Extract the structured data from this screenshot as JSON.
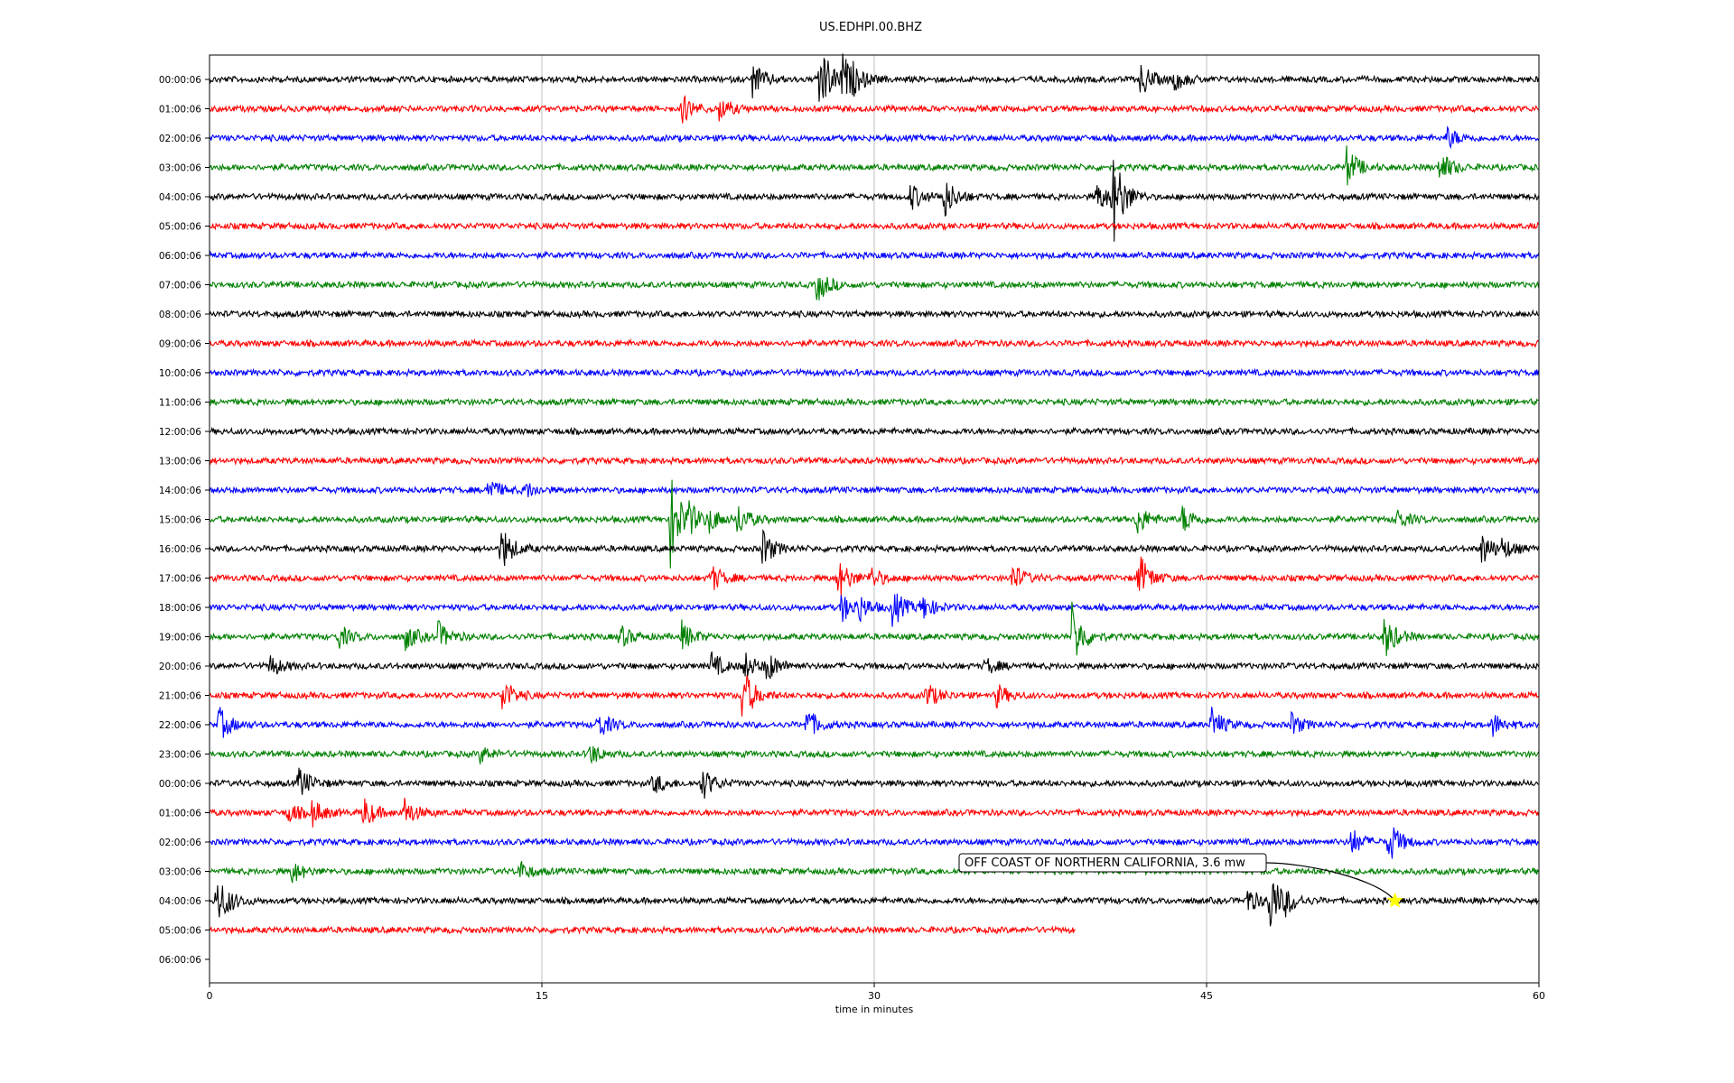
{
  "chart_data": {
    "type": "line",
    "title": "US.EDHPI.00.BHZ",
    "xlabel": "time in minutes",
    "ylabel": "",
    "xlim": [
      0,
      60
    ],
    "x_ticks": [
      0,
      15,
      30,
      45,
      60
    ],
    "grid": "vertical",
    "row_labels": [
      "00:00:06",
      "01:00:06",
      "02:00:06",
      "03:00:06",
      "04:00:06",
      "05:00:06",
      "06:00:06",
      "07:00:06",
      "08:00:06",
      "09:00:06",
      "10:00:06",
      "11:00:06",
      "12:00:06",
      "13:00:06",
      "14:00:06",
      "15:00:06",
      "16:00:06",
      "17:00:06",
      "18:00:06",
      "19:00:06",
      "20:00:06",
      "21:00:06",
      "22:00:06",
      "23:00:06",
      "00:00:06",
      "01:00:06",
      "02:00:06",
      "03:00:06",
      "04:00:06",
      "05:00:06",
      "06:00:06"
    ],
    "trace_colors": [
      "#000000",
      "#ff0000",
      "#0000ff",
      "#008000"
    ],
    "traces": [
      {
        "row": 0,
        "end_minute": 60,
        "events": [
          {
            "t": 24.5,
            "amp": 0.6
          },
          {
            "t": 27.5,
            "amp": 1.4
          },
          {
            "t": 28.5,
            "amp": 1.0
          },
          {
            "t": 29.0,
            "amp": 0.6
          },
          {
            "t": 42.0,
            "amp": 0.6
          },
          {
            "t": 43.5,
            "amp": 0.4
          }
        ]
      },
      {
        "row": 1,
        "end_minute": 60,
        "events": [
          {
            "t": 21.3,
            "amp": 0.5
          },
          {
            "t": 23.0,
            "amp": 0.4
          }
        ]
      },
      {
        "row": 2,
        "end_minute": 60,
        "events": [
          {
            "t": 55.8,
            "amp": 0.4
          }
        ]
      },
      {
        "row": 3,
        "end_minute": 60,
        "events": [
          {
            "t": 51.3,
            "amp": 0.7
          },
          {
            "t": 55.5,
            "amp": 0.6
          }
        ]
      },
      {
        "row": 4,
        "end_minute": 60,
        "events": [
          {
            "t": 31.6,
            "amp": 0.5
          },
          {
            "t": 33.1,
            "amp": 0.8
          },
          {
            "t": 40.0,
            "amp": 0.6
          },
          {
            "t": 40.7,
            "amp": 1.9
          }
        ]
      },
      {
        "row": 5,
        "end_minute": 60,
        "events": []
      },
      {
        "row": 6,
        "end_minute": 60,
        "events": []
      },
      {
        "row": 7,
        "end_minute": 60,
        "events": [
          {
            "t": 27.4,
            "amp": 0.6
          }
        ]
      },
      {
        "row": 8,
        "end_minute": 60,
        "events": []
      },
      {
        "row": 9,
        "end_minute": 60,
        "events": []
      },
      {
        "row": 10,
        "end_minute": 60,
        "events": []
      },
      {
        "row": 11,
        "end_minute": 60,
        "events": []
      },
      {
        "row": 12,
        "end_minute": 60,
        "events": []
      },
      {
        "row": 13,
        "end_minute": 60,
        "events": []
      },
      {
        "row": 14,
        "end_minute": 60,
        "events": [
          {
            "t": 12.5,
            "amp": 0.5
          },
          {
            "t": 14.2,
            "amp": 0.3
          }
        ]
      },
      {
        "row": 15,
        "end_minute": 60,
        "events": [
          {
            "t": 20.8,
            "amp": 1.6
          },
          {
            "t": 21.5,
            "amp": 0.8
          },
          {
            "t": 22.5,
            "amp": 0.5
          },
          {
            "t": 23.8,
            "amp": 0.6
          },
          {
            "t": 41.8,
            "amp": 0.6
          },
          {
            "t": 43.9,
            "amp": 0.5
          },
          {
            "t": 53.5,
            "amp": 0.4
          }
        ]
      },
      {
        "row": 16,
        "end_minute": 60,
        "events": [
          {
            "t": 13.1,
            "amp": 0.9
          },
          {
            "t": 24.9,
            "amp": 0.7
          },
          {
            "t": 57.4,
            "amp": 0.6
          },
          {
            "t": 58.3,
            "amp": 0.4
          }
        ]
      },
      {
        "row": 17,
        "end_minute": 60,
        "events": [
          {
            "t": 22.6,
            "amp": 0.5
          },
          {
            "t": 28.3,
            "amp": 0.8
          },
          {
            "t": 29.8,
            "amp": 0.4
          },
          {
            "t": 36.2,
            "amp": 0.5
          },
          {
            "t": 41.9,
            "amp": 0.9
          }
        ]
      },
      {
        "row": 18,
        "end_minute": 60,
        "events": [
          {
            "t": 28.5,
            "amp": 0.5
          },
          {
            "t": 29.2,
            "amp": 0.6
          },
          {
            "t": 30.8,
            "amp": 0.7
          },
          {
            "t": 32.1,
            "amp": 0.5
          }
        ]
      },
      {
        "row": 19,
        "end_minute": 60,
        "events": [
          {
            "t": 5.8,
            "amp": 0.4
          },
          {
            "t": 8.8,
            "amp": 0.5
          },
          {
            "t": 10.3,
            "amp": 0.5
          },
          {
            "t": 18.5,
            "amp": 0.4
          },
          {
            "t": 21.3,
            "amp": 0.5
          },
          {
            "t": 38.9,
            "amp": 1.2
          },
          {
            "t": 53.0,
            "amp": 0.8
          }
        ]
      },
      {
        "row": 20,
        "end_minute": 60,
        "events": [
          {
            "t": 2.7,
            "amp": 0.4
          },
          {
            "t": 22.6,
            "amp": 0.5
          },
          {
            "t": 24.1,
            "amp": 0.5
          },
          {
            "t": 25.1,
            "amp": 0.6
          },
          {
            "t": 35.0,
            "amp": 0.3
          }
        ]
      },
      {
        "row": 21,
        "end_minute": 60,
        "events": [
          {
            "t": 13.2,
            "amp": 0.6
          },
          {
            "t": 24.0,
            "amp": 1.1
          },
          {
            "t": 32.3,
            "amp": 0.5
          },
          {
            "t": 35.5,
            "amp": 0.4
          }
        ]
      },
      {
        "row": 22,
        "end_minute": 60,
        "events": [
          {
            "t": 0.4,
            "amp": 0.6
          },
          {
            "t": 17.5,
            "amp": 0.5
          },
          {
            "t": 26.9,
            "amp": 0.6
          },
          {
            "t": 45.2,
            "amp": 0.6
          },
          {
            "t": 48.8,
            "amp": 0.4
          },
          {
            "t": 57.9,
            "amp": 0.4
          }
        ]
      },
      {
        "row": 23,
        "end_minute": 60,
        "events": [
          {
            "t": 12.2,
            "amp": 0.3
          },
          {
            "t": 17.1,
            "amp": 0.4
          }
        ]
      },
      {
        "row": 24,
        "end_minute": 60,
        "events": [
          {
            "t": 4.0,
            "amp": 0.6
          },
          {
            "t": 20.0,
            "amp": 0.4
          },
          {
            "t": 22.2,
            "amp": 0.6
          }
        ]
      },
      {
        "row": 25,
        "end_minute": 60,
        "events": [
          {
            "t": 3.5,
            "amp": 0.4
          },
          {
            "t": 4.6,
            "amp": 0.5
          },
          {
            "t": 6.9,
            "amp": 0.6
          },
          {
            "t": 8.7,
            "amp": 0.6
          }
        ]
      },
      {
        "row": 26,
        "end_minute": 60,
        "events": [
          {
            "t": 51.5,
            "amp": 0.5
          },
          {
            "t": 53.2,
            "amp": 0.8
          }
        ]
      },
      {
        "row": 27,
        "end_minute": 60,
        "events": [
          {
            "t": 3.7,
            "amp": 0.4
          },
          {
            "t": 13.9,
            "amp": 0.4
          }
        ]
      },
      {
        "row": 28,
        "end_minute": 60,
        "events": [
          {
            "t": 0.3,
            "amp": 0.9
          },
          {
            "t": 0.7,
            "amp": 0.5
          },
          {
            "t": 46.8,
            "amp": 0.5
          },
          {
            "t": 47.8,
            "amp": 1.2
          },
          {
            "t": 48.5,
            "amp": 0.6
          }
        ]
      },
      {
        "row": 29,
        "end_minute": 39.1,
        "events": []
      }
    ],
    "annotations": [
      {
        "text": "OFF COAST OF NORTHERN CALIFORNIA, 3.6 mw",
        "row": 28,
        "minute": 53.5,
        "marker": "star",
        "marker_color": "#ffff00"
      }
    ]
  }
}
